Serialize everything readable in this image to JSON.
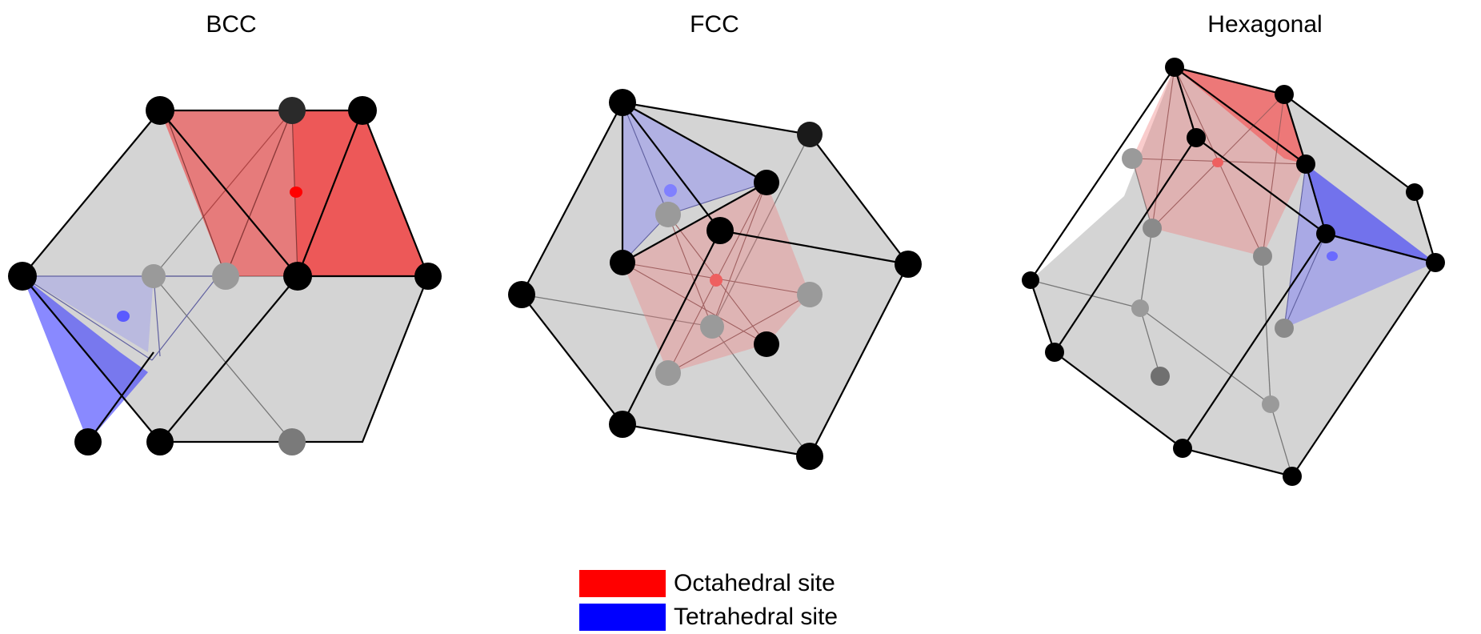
{
  "panels": {
    "bcc": {
      "title": "BCC"
    },
    "fcc": {
      "title": "FCC"
    },
    "hexagonal": {
      "title": "Hexagonal"
    }
  },
  "legend": {
    "items": [
      {
        "label": "Octahedral site",
        "color": "#ff0000"
      },
      {
        "label": "Tetrahedral site",
        "color": "#0000ff"
      }
    ]
  },
  "colors": {
    "cell_face": "#d4d4d4",
    "atom": "#000000",
    "hidden_atom": "#9a9a9a",
    "octahedral": "#ff0000",
    "tetrahedral": "#0000ff"
  }
}
